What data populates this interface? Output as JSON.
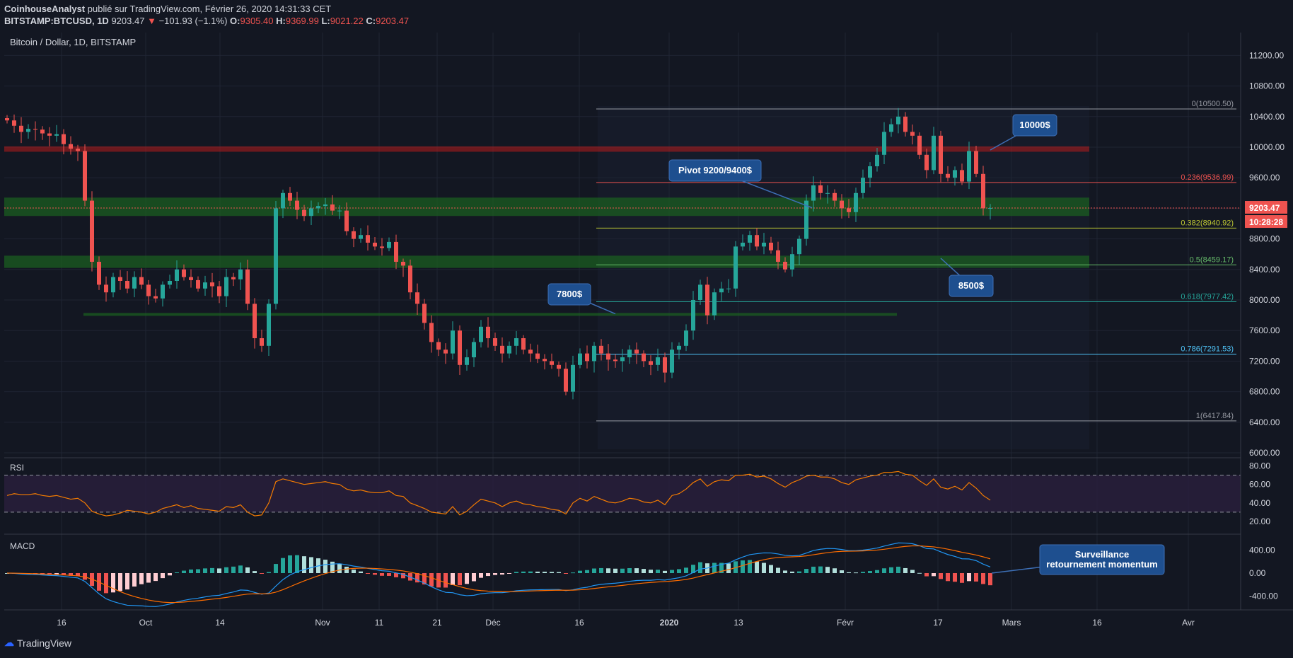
{
  "header": {
    "author": "CoinhouseAnalyst",
    "published": "publié sur TradingView.com, Février 26, 2020 14:31:33 CET",
    "symbol": "BITSTAMP:BTCUSD, 1D",
    "last": "9203.47",
    "change": "−101.93 (−1.1%)",
    "o_label": "O:",
    "o_val": "9305.40",
    "h_label": "H:",
    "h_val": "9369.99",
    "l_label": "L:",
    "l_val": "9021.22",
    "c_label": "C:",
    "c_val": "9203.47"
  },
  "colors": {
    "bg": "#131722",
    "up": "#26a69a",
    "down": "#ef5350",
    "green_zone": "#1b5e20",
    "red_zone": "#b71c1c",
    "callout": "#1e4f8f"
  },
  "chart_data": {
    "type": "candlestick",
    "title": "Bitcoin / Dollar, 1D, BITSTAMP",
    "x_ticks": [
      "16",
      "Oct",
      "14",
      "Nov",
      "11",
      "21",
      "Déc",
      "16",
      "2020",
      "13",
      "Févr",
      "17",
      "Mars",
      "16",
      "Avr"
    ],
    "y_ticks": [
      "11200.00",
      "10800.00",
      "10400.00",
      "10000.00",
      "9600.00",
      "9200.00",
      "8800.00",
      "8400.00",
      "8000.00",
      "7600.00",
      "7200.00",
      "6800.00",
      "6400.00",
      "6000.00"
    ],
    "ylim": [
      6000,
      11500
    ],
    "closes": [
      10350,
      10280,
      10200,
      10240,
      10230,
      10180,
      10150,
      10170,
      10040,
      9980,
      9950,
      9300,
      8500,
      8200,
      8100,
      8300,
      8250,
      8150,
      8300,
      8200,
      8050,
      8020,
      8200,
      8250,
      8400,
      8300,
      8260,
      8150,
      8230,
      8180,
      8050,
      8300,
      8270,
      8400,
      7950,
      7500,
      7400,
      7950,
      9200,
      9400,
      9300,
      9180,
      9100,
      9200,
      9230,
      9250,
      9170,
      9170,
      8900,
      8800,
      8850,
      8750,
      8700,
      8680,
      8760,
      8500,
      8450,
      8100,
      7950,
      7700,
      7450,
      7350,
      7300,
      7600,
      7150,
      7250,
      7450,
      7650,
      7500,
      7400,
      7300,
      7400,
      7500,
      7350,
      7300,
      7230,
      7200,
      7150,
      7100,
      6800,
      7150,
      7300,
      7200,
      7400,
      7300,
      7220,
      7200,
      7250,
      7350,
      7300,
      7200,
      7150,
      7250,
      7050,
      7350,
      7400,
      7600,
      8000,
      8200,
      7800,
      8100,
      8150,
      8150,
      8700,
      8750,
      8850,
      8700,
      8750,
      8650,
      8500,
      8400,
      8600,
      8800,
      9300,
      9500,
      9400,
      9400,
      9300,
      9200,
      9150,
      9400,
      9600,
      9750,
      9900,
      10200,
      10300,
      10400,
      10200,
      10150,
      9900,
      9700,
      10150,
      9650,
      9600,
      9700,
      9550,
      9950,
      9650,
      9200,
      9203.47
    ],
    "price_tag": "9203.47",
    "countdown": "10:28:28",
    "fib_levels": [
      {
        "label": "0(10500.50)",
        "value": 10500.5
      },
      {
        "label": "0.236(9536.99)",
        "value": 9536.99
      },
      {
        "label": "0.382(8940.92)",
        "value": 8940.92
      },
      {
        "label": "0.5(8459.17)",
        "value": 8459.17
      },
      {
        "label": "0.618(7977.42)",
        "value": 7977.42
      },
      {
        "label": "0.786(7291.53)",
        "value": 7291.53
      },
      {
        "label": "1(6417.84)",
        "value": 6417.84
      }
    ],
    "zones": [
      {
        "type": "resistance",
        "from": 9940,
        "to": 10010
      },
      {
        "type": "support",
        "from": 9100,
        "to": 9340
      },
      {
        "type": "support",
        "from": 8420,
        "to": 8580
      },
      {
        "type": "support",
        "from": 7800,
        "to": 7830
      }
    ],
    "annotations": [
      {
        "text": "10000$",
        "price": 10000
      },
      {
        "text": "Pivot 9200/9400$",
        "price": 9300
      },
      {
        "text": "7800$",
        "price": 7800
      },
      {
        "text": "8500$",
        "price": 8500
      }
    ],
    "rsi": {
      "label": "RSI",
      "y_ticks": [
        "80.00",
        "60.00",
        "40.00",
        "20.00"
      ],
      "values": [
        48,
        50,
        49,
        49,
        50,
        48,
        47,
        48,
        46,
        44,
        45,
        40,
        31,
        28,
        26,
        27,
        29,
        32,
        31,
        30,
        28,
        30,
        34,
        36,
        38,
        35,
        37,
        34,
        33,
        32,
        31,
        36,
        35,
        38,
        30,
        26,
        27,
        40,
        63,
        66,
        64,
        62,
        60,
        61,
        62,
        63,
        61,
        60,
        55,
        53,
        54,
        52,
        51,
        51,
        53,
        48,
        47,
        40,
        37,
        34,
        30,
        29,
        28,
        36,
        27,
        31,
        38,
        44,
        42,
        40,
        36,
        40,
        42,
        39,
        38,
        36,
        35,
        33,
        32,
        28,
        40,
        45,
        42,
        47,
        44,
        41,
        40,
        42,
        45,
        44,
        41,
        40,
        43,
        38,
        48,
        50,
        55,
        62,
        66,
        58,
        63,
        65,
        64,
        70,
        70,
        71,
        68,
        69,
        66,
        61,
        57,
        62,
        65,
        69,
        70,
        68,
        68,
        66,
        62,
        60,
        65,
        67,
        69,
        70,
        73,
        73,
        74,
        71,
        70,
        64,
        59,
        66,
        57,
        55,
        58,
        54,
        62,
        56,
        48,
        43
      ]
    },
    "macd": {
      "label": "MACD",
      "y_ticks": [
        "400.00",
        "0.00",
        "-400.00"
      ],
      "callout": "Surveillance retournement momentum"
    }
  },
  "x_axis_extra": {
    "jan_bold": "2020"
  },
  "branding": {
    "name": "TradingView"
  }
}
